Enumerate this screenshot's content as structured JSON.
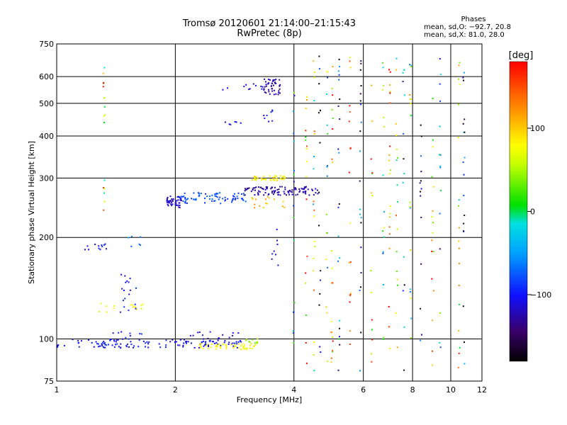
{
  "header": {
    "title_line1": "Tromsø 20120601 21:14:00–21:15:43",
    "title_line2": "RwPretec (8p)"
  },
  "phases_box": {
    "title": "Phases",
    "line1": "mean, sd,O: −92.7, 20.8",
    "line2": "mean, sd,X:  81.0, 28.0"
  },
  "colorbar": {
    "label": "[deg]",
    "ticks": [
      {
        "value": 100,
        "label": "100"
      },
      {
        "value": 0,
        "label": "0"
      },
      {
        "value": -100,
        "label": "−100"
      }
    ],
    "range": [
      -180,
      180
    ]
  },
  "chart_data": {
    "type": "scatter",
    "title": "Tromsø 20120601 21:14:00–21:15:43",
    "subtitle": "RwPretec (8p)",
    "xlabel": "Frequency [MHz]",
    "ylabel": "Stationary phase Virtual Height [km]",
    "xscale": "log",
    "yscale": "log",
    "xlim": [
      1,
      12
    ],
    "ylim": [
      75,
      750
    ],
    "xticks": [
      {
        "value": 1,
        "label": "1"
      },
      {
        "value": 2,
        "label": "2"
      },
      {
        "value": 4,
        "label": "4"
      },
      {
        "value": 6,
        "label": "6"
      },
      {
        "value": 8,
        "label": "8"
      },
      {
        "value": 10,
        "label": "10"
      },
      {
        "value": 12,
        "label": "12"
      }
    ],
    "yticks": [
      {
        "value": 75,
        "label": "75"
      },
      {
        "value": 100,
        "label": "100"
      },
      {
        "value": 200,
        "label": "200"
      },
      {
        "value": 300,
        "label": "300"
      },
      {
        "value": 400,
        "label": "400"
      },
      {
        "value": 500,
        "label": "500"
      },
      {
        "value": 600,
        "label": "600"
      },
      {
        "value": 750,
        "label": "750"
      }
    ],
    "grid": true,
    "color_variable": "phase [deg]",
    "clusters": [
      {
        "f_range": [
          1.0,
          2.95
        ],
        "h": 97,
        "h_jitter": 3,
        "phase": -105,
        "n": 110
      },
      {
        "f_range": [
          1.3,
          1.65
        ],
        "h": 100,
        "h_jitter": 6,
        "phase": -95,
        "n": 25
      },
      {
        "f_range": [
          2.3,
          3.2
        ],
        "h": 95,
        "h_jitter": 2,
        "phase": 80,
        "n": 55
      },
      {
        "f_range": [
          2.1,
          2.9
        ],
        "h": 101,
        "h_jitter": 4,
        "phase": -110,
        "n": 18
      },
      {
        "f_range": [
          3.0,
          3.25
        ],
        "h": 99,
        "h_jitter": 2,
        "phase": 40,
        "n": 10
      },
      {
        "f_range": [
          1.25,
          1.7
        ],
        "h": 124,
        "h_jitter": 4,
        "phase": 70,
        "n": 15
      },
      {
        "f_range": [
          1.45,
          1.6
        ],
        "h": 140,
        "h_jitter": 20,
        "phase": -95,
        "n": 18
      },
      {
        "f_range": [
          1.18,
          1.4
        ],
        "h": 188,
        "h_jitter": 4,
        "phase": -100,
        "n": 12
      },
      {
        "f_range": [
          1.5,
          1.68
        ],
        "h": 195,
        "h_jitter": 8,
        "phase": -60,
        "n": 6
      },
      {
        "f_range": [
          1.9,
          2.08
        ],
        "h": 255,
        "h_jitter": 10,
        "phase": -115,
        "n": 45
      },
      {
        "f_range": [
          2.05,
          3.05
        ],
        "h": 262,
        "h_jitter": 10,
        "phase": -80,
        "n": 75
      },
      {
        "f_range": [
          3.0,
          4.6
        ],
        "h": 275,
        "h_jitter": 8,
        "phase": -125,
        "n": 110
      },
      {
        "f_range": [
          3.1,
          3.8
        ],
        "h": 300,
        "h_jitter": 5,
        "phase": 85,
        "n": 45
      },
      {
        "f_range": [
          3.1,
          3.9
        ],
        "h": 255,
        "h_jitter": 10,
        "phase": 110,
        "n": 16
      },
      {
        "f_range": [
          3.35,
          3.7
        ],
        "h": 560,
        "h_jitter": 30,
        "phase": -125,
        "n": 45
      },
      {
        "f_range": [
          2.6,
          3.5
        ],
        "h": 560,
        "h_jitter": 15,
        "phase": -110,
        "n": 12
      },
      {
        "f_range": [
          3.35,
          3.55
        ],
        "h": 460,
        "h_jitter": 20,
        "phase": -105,
        "n": 8
      },
      {
        "f_range": [
          2.5,
          3.0
        ],
        "h": 440,
        "h_jitter": 8,
        "phase": -100,
        "n": 6
      },
      {
        "f_range": [
          3.5,
          3.65
        ],
        "h": 182,
        "h_jitter": 30,
        "phase": -110,
        "n": 8
      }
    ],
    "vertical_streaks": [
      {
        "f": 1.32,
        "h_range": [
          220,
          680
        ],
        "phase": 80
      },
      {
        "f": 4.0,
        "h_range": [
          80,
          690
        ],
        "phase": -40
      },
      {
        "f": 4.3,
        "h_range": [
          80,
          690
        ],
        "phase": 100
      },
      {
        "f": 4.5,
        "h_range": [
          80,
          690
        ],
        "phase": 50
      },
      {
        "f": 4.65,
        "h_range": [
          80,
          690
        ],
        "phase": -150
      },
      {
        "f": 4.85,
        "h_range": [
          80,
          690
        ],
        "phase": 10
      },
      {
        "f": 5.0,
        "h_range": [
          80,
          690
        ],
        "phase": 120
      },
      {
        "f": 5.2,
        "h_range": [
          80,
          690
        ],
        "phase": -90
      },
      {
        "f": 5.55,
        "h_range": [
          80,
          690
        ],
        "phase": 150
      },
      {
        "f": 5.9,
        "h_range": [
          80,
          690
        ],
        "phase": -130
      },
      {
        "f": 6.3,
        "h_range": [
          80,
          690
        ],
        "phase": 90
      },
      {
        "f": 6.75,
        "h_range": [
          80,
          690
        ],
        "phase": -20
      },
      {
        "f": 7.0,
        "h_range": [
          80,
          690
        ],
        "phase": 140
      },
      {
        "f": 7.3,
        "h_range": [
          80,
          690
        ],
        "phase": 60
      },
      {
        "f": 7.6,
        "h_range": [
          80,
          690
        ],
        "phase": -100
      },
      {
        "f": 7.9,
        "h_range": [
          80,
          690
        ],
        "phase": 30
      },
      {
        "f": 8.4,
        "h_range": [
          80,
          690
        ],
        "phase": -160
      },
      {
        "f": 9.0,
        "h_range": [
          80,
          690
        ],
        "phase": 110
      },
      {
        "f": 9.4,
        "h_range": [
          80,
          690
        ],
        "phase": -60
      },
      {
        "f": 10.5,
        "h_range": [
          80,
          690
        ],
        "phase": 70
      },
      {
        "f": 10.8,
        "h_range": [
          80,
          690
        ],
        "phase": -120
      }
    ]
  }
}
